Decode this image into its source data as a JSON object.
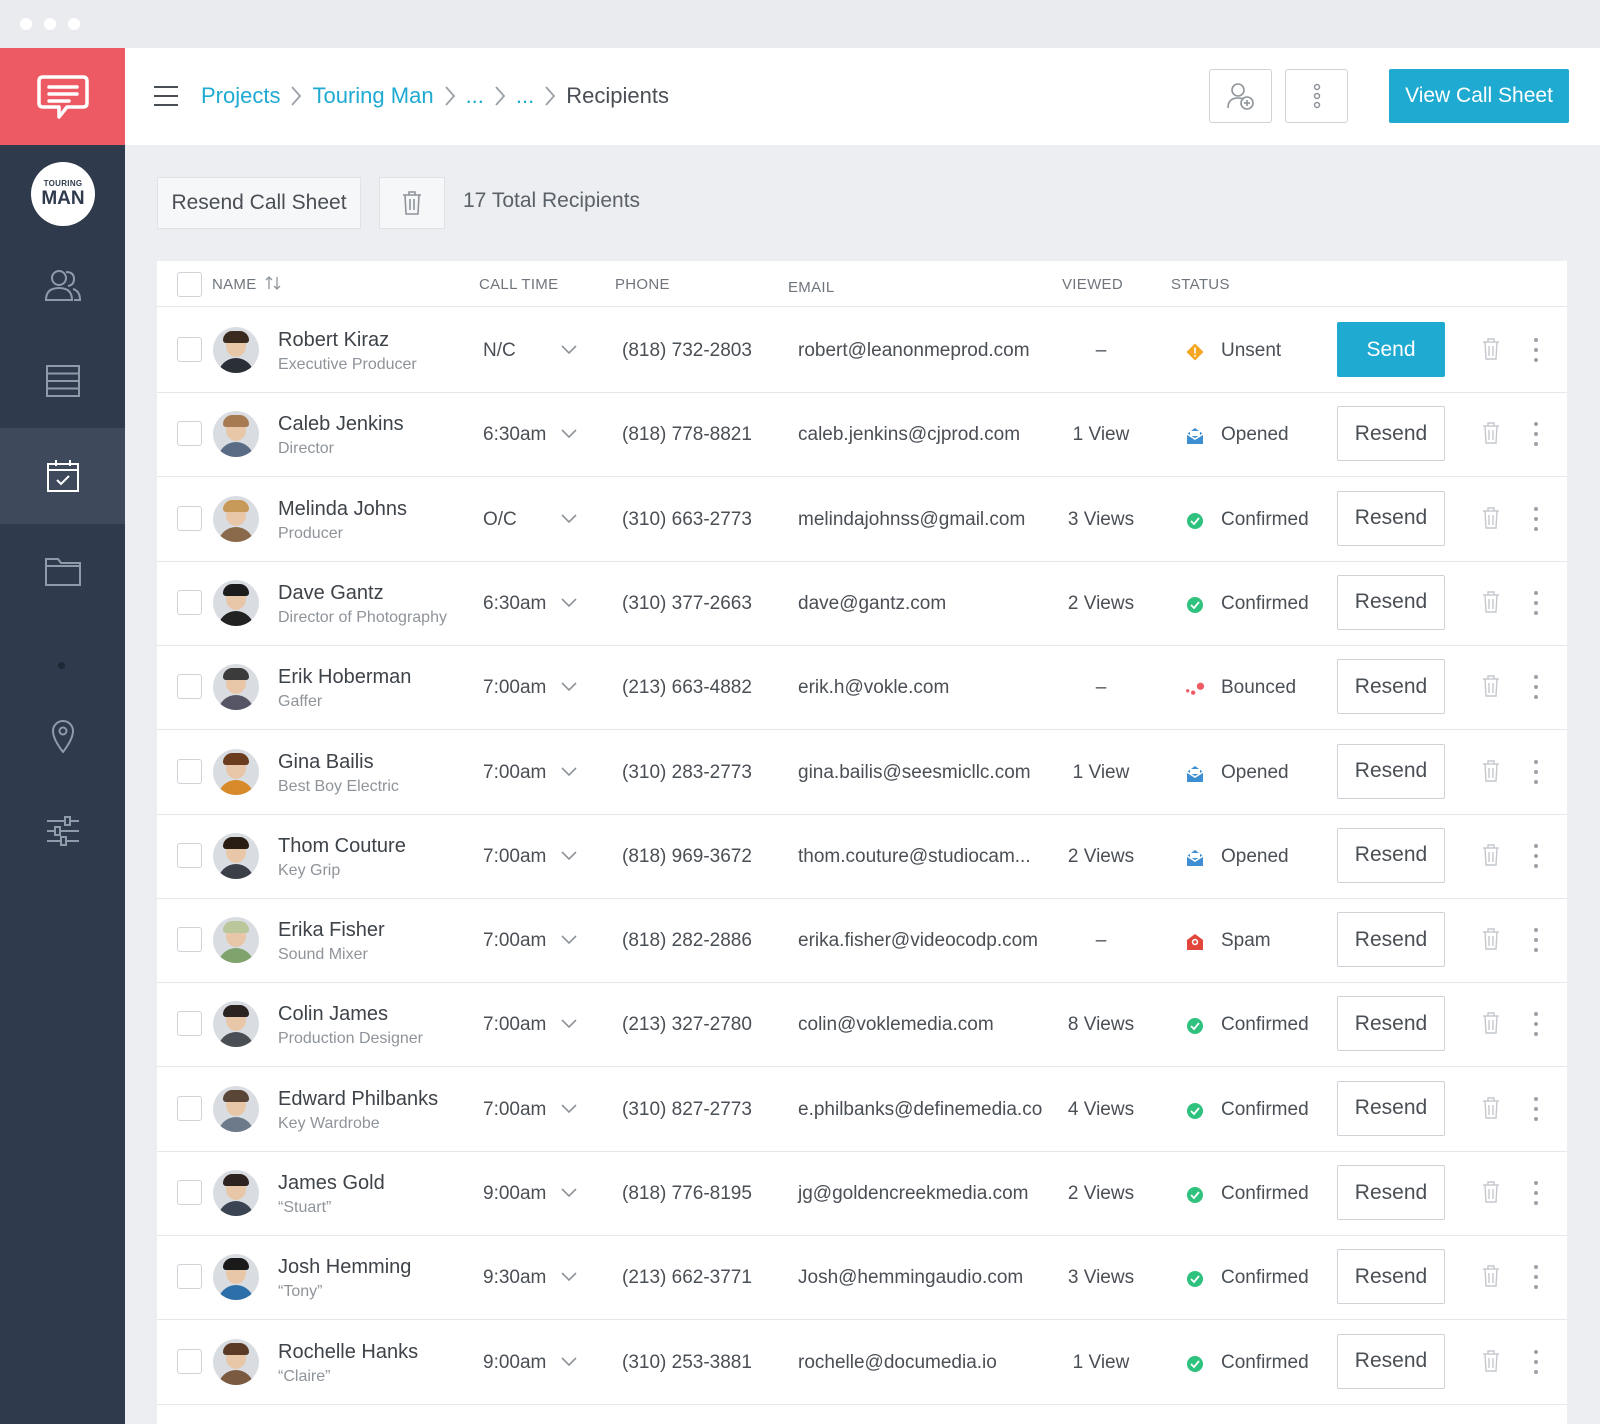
{
  "breadcrumb": {
    "projects": "Projects",
    "project": "Touring Man",
    "ellipsis1": "...",
    "ellipsis2": "...",
    "current": "Recipients"
  },
  "toolbar": {
    "view_call_sheet": "View Call Sheet"
  },
  "project_avatar": {
    "line1": "TOURING",
    "line2": "MAN"
  },
  "actions": {
    "resend_call_sheet": "Resend Call Sheet",
    "total_recipients": "17 Total Recipients"
  },
  "table": {
    "headers": {
      "name": "NAME",
      "call_time": "CALL TIME",
      "phone": "PHONE",
      "email": "EMAIL",
      "viewed": "VIEWED",
      "status": "STATUS"
    },
    "rows": [
      {
        "name": "Robert Kiraz",
        "role": "Executive Producer",
        "call_time": "N/C",
        "phone": "(818) 732-2803",
        "email": "robert@leanonmeprod.com",
        "viewed": "–",
        "status": "Unsent",
        "status_icon": "warning-diamond-icon",
        "action": "Send"
      },
      {
        "name": "Caleb Jenkins",
        "role": "Director",
        "call_time": "6:30am",
        "phone": "(818) 778-8821",
        "email": "caleb.jenkins@cjprod.com",
        "viewed": "1 View",
        "status": "Opened",
        "status_icon": "opened-envelope-icon",
        "action": "Resend"
      },
      {
        "name": "Melinda Johns",
        "role": "Producer",
        "call_time": "O/C",
        "phone": "(310) 663-2773",
        "email": "melindajohnss@gmail.com",
        "viewed": "3 Views",
        "status": "Confirmed",
        "status_icon": "check-circle-icon",
        "action": "Resend"
      },
      {
        "name": "Dave Gantz",
        "role": "Director of Photography",
        "call_time": "6:30am",
        "phone": "(310) 377-2663",
        "email": "dave@gantz.com",
        "viewed": "2 Views",
        "status": "Confirmed",
        "status_icon": "check-circle-icon",
        "action": "Resend"
      },
      {
        "name": "Erik Hoberman",
        "role": "Gaffer",
        "call_time": "7:00am",
        "phone": "(213) 663-4882",
        "email": "erik.h@vokle.com",
        "viewed": "–",
        "status": "Bounced",
        "status_icon": "bounced-dots-icon",
        "action": "Resend"
      },
      {
        "name": "Gina Bailis",
        "role": "Best Boy Electric",
        "call_time": "7:00am",
        "phone": "(310) 283-2773",
        "email": "gina.bailis@seesmicllc.com",
        "viewed": "1 View",
        "status": "Opened",
        "status_icon": "opened-envelope-icon",
        "action": "Resend"
      },
      {
        "name": "Thom Couture",
        "role": "Key Grip",
        "call_time": "7:00am",
        "phone": "(818) 969-3672",
        "email": "thom.couture@studiocam...",
        "viewed": "2 Views",
        "status": "Opened",
        "status_icon": "opened-envelope-icon",
        "action": "Resend"
      },
      {
        "name": "Erika Fisher",
        "role": "Sound Mixer",
        "call_time": "7:00am",
        "phone": "(818) 282-2886",
        "email": "erika.fisher@videocodp.com",
        "viewed": "–",
        "status": "Spam",
        "status_icon": "spam-envelope-icon",
        "action": "Resend"
      },
      {
        "name": "Colin James",
        "role": "Production Designer",
        "call_time": "7:00am",
        "phone": "(213) 327-2780",
        "email": "colin@voklemedia.com",
        "viewed": "8 Views",
        "status": "Confirmed",
        "status_icon": "check-circle-icon",
        "action": "Resend"
      },
      {
        "name": "Edward Philbanks",
        "role": "Key Wardrobe",
        "call_time": "7:00am",
        "phone": "(310) 827-2773",
        "email": "e.philbanks@definemedia.co",
        "viewed": "4 Views",
        "status": "Confirmed",
        "status_icon": "check-circle-icon",
        "action": "Resend"
      },
      {
        "name": "James Gold",
        "role": "“Stuart”",
        "call_time": "9:00am",
        "phone": "(818) 776-8195",
        "email": "jg@goldencreekmedia.com",
        "viewed": "2 Views",
        "status": "Confirmed",
        "status_icon": "check-circle-icon",
        "action": "Resend"
      },
      {
        "name": "Josh Hemming",
        "role": "“Tony”",
        "call_time": "9:30am",
        "phone": "(213) 662-3771",
        "email": "Josh@hemmingaudio.com",
        "viewed": "3 Views",
        "status": "Confirmed",
        "status_icon": "check-circle-icon",
        "action": "Resend"
      },
      {
        "name": "Rochelle Hanks",
        "role": "“Claire”",
        "call_time": "9:00am",
        "phone": "(310) 253-3881",
        "email": "rochelle@documedia.io",
        "viewed": "1 View",
        "status": "Confirmed",
        "status_icon": "check-circle-icon",
        "action": "Resend"
      }
    ]
  },
  "sidebar": {
    "items": [
      {
        "icon": "contacts-icon"
      },
      {
        "icon": "list-icon"
      },
      {
        "icon": "calendar-check-icon"
      },
      {
        "icon": "folder-icon"
      },
      {
        "icon": "location-pin-icon"
      },
      {
        "icon": "settings-sliders-icon"
      }
    ],
    "active_item": "calendar-check-icon"
  },
  "colors": {
    "accent": "#1eaad1",
    "brand": "#ee5a64",
    "sidebar": "#2f3b4d",
    "confirmed": "#2ec27e",
    "unsent": "#f5a623",
    "opened": "#3d8fd1",
    "bounced": "#ee5a64",
    "spam": "#e2453c"
  }
}
